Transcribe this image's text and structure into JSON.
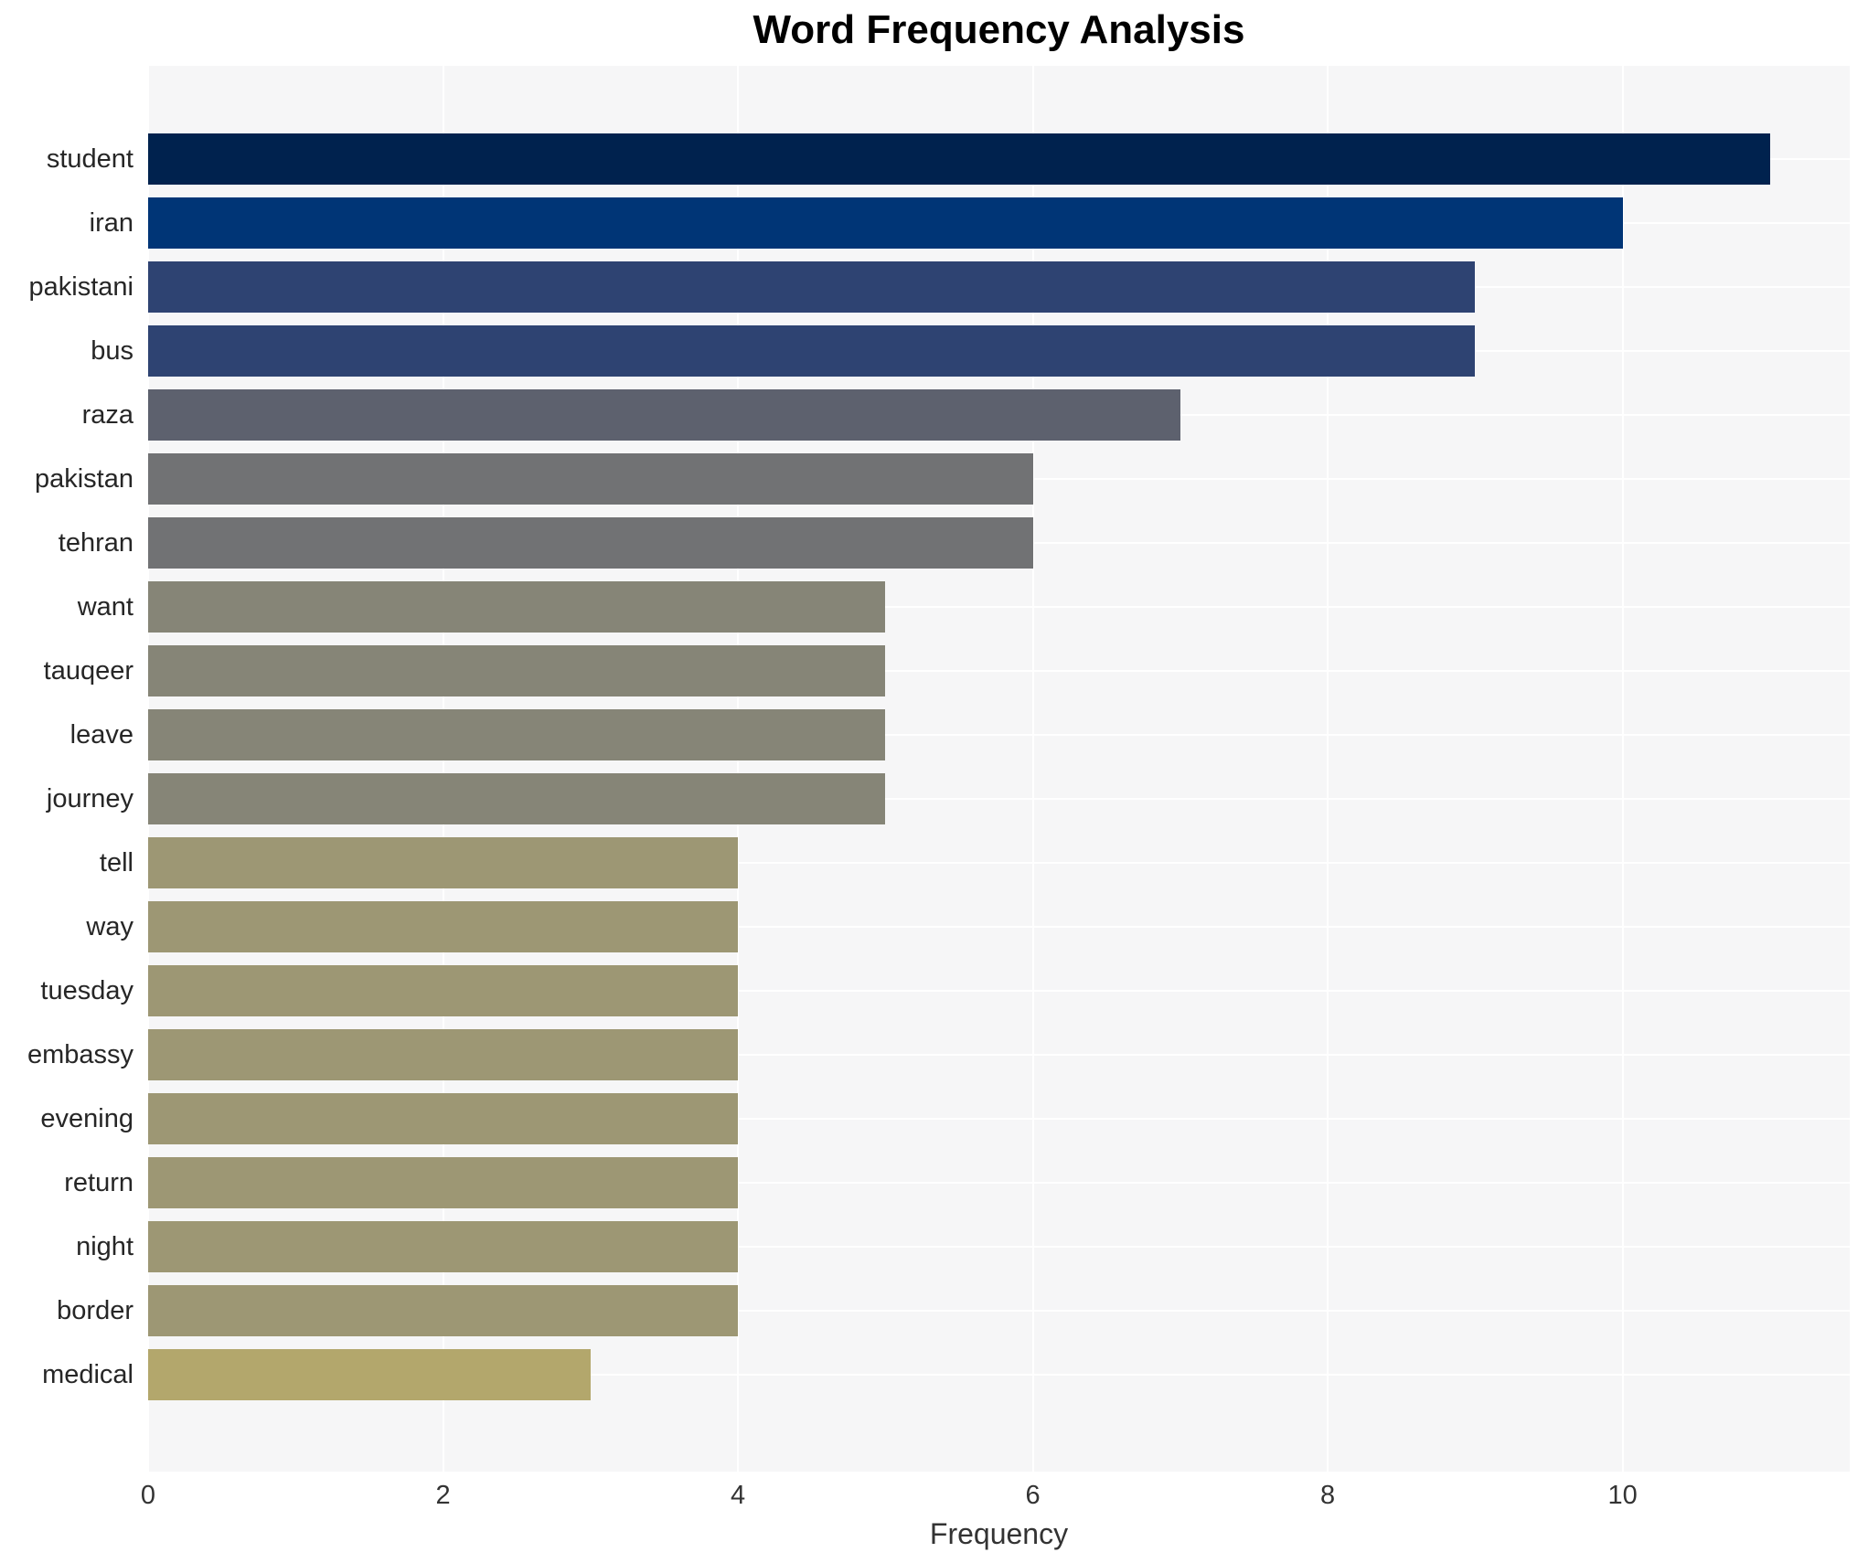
{
  "title": "Word Frequency Analysis",
  "xlabel": "Frequency",
  "colors": {
    "figure_background": "#ffffff",
    "plot_background": "#f6f6f7",
    "grid": "#ffffff",
    "title_text": "#000000",
    "tick_text": "#333333",
    "category_text": "#262626"
  },
  "chart_data": {
    "type": "bar",
    "orientation": "horizontal",
    "title": "Word Frequency Analysis",
    "xlabel": "Frequency",
    "ylabel": "",
    "categories": [
      "student",
      "iran",
      "pakistani",
      "bus",
      "raza",
      "pakistan",
      "tehran",
      "want",
      "tauqeer",
      "leave",
      "journey",
      "tell",
      "way",
      "tuesday",
      "embassy",
      "evening",
      "return",
      "night",
      "border",
      "medical"
    ],
    "values": [
      11,
      10,
      9,
      9,
      7,
      6,
      6,
      5,
      5,
      5,
      5,
      4,
      4,
      4,
      4,
      4,
      4,
      4,
      4,
      3
    ],
    "bar_colors": [
      "#00224e",
      "#003576",
      "#2e4372",
      "#2e4372",
      "#5d616e",
      "#717274",
      "#717274",
      "#868577",
      "#868577",
      "#868577",
      "#868577",
      "#9d9774",
      "#9d9774",
      "#9d9774",
      "#9d9774",
      "#9d9774",
      "#9d9774",
      "#9d9774",
      "#9d9774",
      "#b3a76c"
    ],
    "xlim": [
      0,
      11.54
    ],
    "xticks": [
      0,
      2,
      4,
      6,
      8,
      10
    ],
    "grid": true,
    "legend": false
  }
}
